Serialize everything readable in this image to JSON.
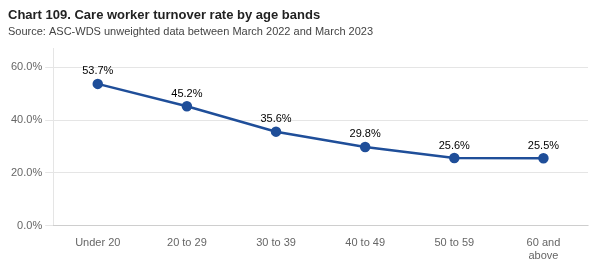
{
  "chart_data": {
    "type": "line",
    "title": "Chart 109. Care worker turnover rate by age bands",
    "subtitle": "Source: ASC-WDS unweighted data between March 2022 and March 2023",
    "categories": [
      "Under 20",
      "20 to 29",
      "30 to 39",
      "40 to 49",
      "50 to 59",
      "60 and\nabove"
    ],
    "values": [
      53.7,
      45.2,
      35.6,
      29.8,
      25.6,
      25.5
    ],
    "value_labels": [
      "53.7%",
      "45.2%",
      "35.6%",
      "29.8%",
      "25.6%",
      "25.5%"
    ],
    "data_labels": true,
    "color": "#1F4E99",
    "marker": "circle",
    "ylim": [
      0,
      67
    ],
    "yticks": [
      {
        "value": 0,
        "label": "0.0%"
      },
      {
        "value": 20,
        "label": "20.0%"
      },
      {
        "value": 40,
        "label": "40.0%"
      },
      {
        "value": 60,
        "label": "60.0%"
      }
    ],
    "grid": true
  }
}
